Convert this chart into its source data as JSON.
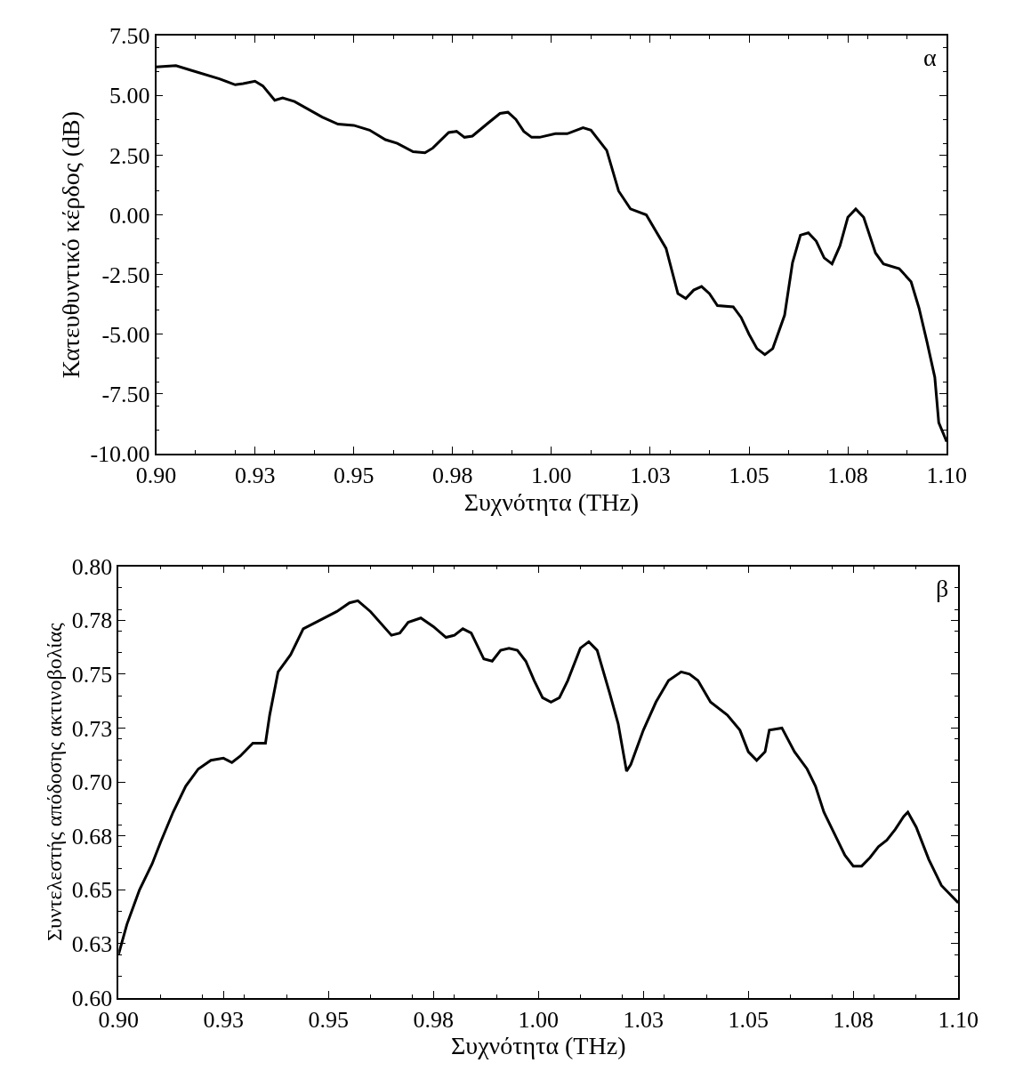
{
  "chart_data": [
    {
      "type": "line",
      "xlabel": "Συχνότητα (THz)",
      "ylabel": "Κατευθυντικό κέρδος (dB)",
      "annotations": [
        "α"
      ],
      "marker": "none",
      "line_style": "solid",
      "xlim": [
        0.9,
        1.1
      ],
      "xticks": [
        {
          "value": 0.9,
          "label": "0.90"
        },
        {
          "value": 0.925,
          "label": "0.93"
        },
        {
          "value": 0.95,
          "label": "0.95"
        },
        {
          "value": 0.975,
          "label": "0.98"
        },
        {
          "value": 1.0,
          "label": "1.00"
        },
        {
          "value": 1.025,
          "label": "1.03"
        },
        {
          "value": 1.05,
          "label": "1.05"
        },
        {
          "value": 1.075,
          "label": "1.08"
        },
        {
          "value": 1.1,
          "label": "1.10"
        }
      ],
      "ylim": [
        -10,
        7.5
      ],
      "yticks": [
        {
          "value": -10,
          "label": "-10.00"
        },
        {
          "value": -7.5,
          "label": "-7.50"
        },
        {
          "value": -5,
          "label": "-5.00"
        },
        {
          "value": -2.5,
          "label": "-2.50"
        },
        {
          "value": 0,
          "label": "0.00"
        },
        {
          "value": 2.5,
          "label": "2.50"
        },
        {
          "value": 5,
          "label": "5.00"
        },
        {
          "value": 7.5,
          "label": "7.50"
        }
      ],
      "x": [
        0.9,
        0.905,
        0.909,
        0.916,
        0.92,
        0.922,
        0.925,
        0.927,
        0.93,
        0.932,
        0.935,
        0.942,
        0.946,
        0.95,
        0.954,
        0.958,
        0.961,
        0.965,
        0.968,
        0.97,
        0.974,
        0.976,
        0.978,
        0.98,
        0.984,
        0.987,
        0.989,
        0.991,
        0.993,
        0.995,
        0.997,
        1.001,
        1.004,
        1.008,
        1.01,
        1.014,
        1.017,
        1.02,
        1.024,
        1.029,
        1.032,
        1.034,
        1.036,
        1.038,
        1.04,
        1.042,
        1.046,
        1.048,
        1.05,
        1.052,
        1.054,
        1.056,
        1.059,
        1.061,
        1.063,
        1.065,
        1.067,
        1.069,
        1.071,
        1.073,
        1.075,
        1.077,
        1.079,
        1.082,
        1.084,
        1.088,
        1.091,
        1.093,
        1.095,
        1.097,
        1.098,
        1.1
      ],
      "series": [
        {
          "color": "#000000",
          "values": [
            6.2,
            6.25,
            6.05,
            5.7,
            5.45,
            5.5,
            5.6,
            5.4,
            4.8,
            4.9,
            4.75,
            4.1,
            3.8,
            3.75,
            3.55,
            3.15,
            3.0,
            2.65,
            2.6,
            2.8,
            3.45,
            3.5,
            3.25,
            3.3,
            3.85,
            4.25,
            4.3,
            4.0,
            3.5,
            3.25,
            3.25,
            3.4,
            3.4,
            3.65,
            3.55,
            2.7,
            1.0,
            0.25,
            0.0,
            -1.4,
            -3.3,
            -3.5,
            -3.15,
            -3.0,
            -3.3,
            -3.8,
            -3.85,
            -4.3,
            -5.0,
            -5.6,
            -5.85,
            -5.6,
            -4.2,
            -2.0,
            -0.85,
            -0.75,
            -1.1,
            -1.8,
            -2.05,
            -1.3,
            -0.1,
            0.25,
            -0.1,
            -1.6,
            -2.05,
            -2.25,
            -2.8,
            -3.9,
            -5.3,
            -6.8,
            -8.7,
            -9.5
          ]
        }
      ]
    },
    {
      "type": "line",
      "xlabel": "Συχνότητα (THz)",
      "ylabel": "Συντελεστής απόδοσης ακτινοβολίας",
      "annotations": [
        "β"
      ],
      "marker": "none",
      "line_style": "solid",
      "xlim": [
        0.9,
        1.1
      ],
      "xticks": [
        {
          "value": 0.9,
          "label": "0.90"
        },
        {
          "value": 0.925,
          "label": "0.93"
        },
        {
          "value": 0.95,
          "label": "0.95"
        },
        {
          "value": 0.975,
          "label": "0.98"
        },
        {
          "value": 1.0,
          "label": "1.00"
        },
        {
          "value": 1.025,
          "label": "1.03"
        },
        {
          "value": 1.05,
          "label": "1.05"
        },
        {
          "value": 1.075,
          "label": "1.08"
        },
        {
          "value": 1.1,
          "label": "1.10"
        }
      ],
      "ylim": [
        0.6,
        0.8
      ],
      "yticks": [
        {
          "value": 0.6,
          "label": "0.60"
        },
        {
          "value": 0.625,
          "label": "0.63"
        },
        {
          "value": 0.65,
          "label": "0.65"
        },
        {
          "value": 0.675,
          "label": "0.68"
        },
        {
          "value": 0.7,
          "label": "0.70"
        },
        {
          "value": 0.725,
          "label": "0.73"
        },
        {
          "value": 0.75,
          "label": "0.75"
        },
        {
          "value": 0.775,
          "label": "0.78"
        },
        {
          "value": 0.8,
          "label": "0.80"
        }
      ],
      "x": [
        0.9,
        0.902,
        0.905,
        0.908,
        0.91,
        0.913,
        0.916,
        0.919,
        0.922,
        0.925,
        0.927,
        0.929,
        0.932,
        0.935,
        0.936,
        0.938,
        0.941,
        0.944,
        0.947,
        0.952,
        0.955,
        0.957,
        0.96,
        0.965,
        0.967,
        0.969,
        0.972,
        0.975,
        0.978,
        0.98,
        0.982,
        0.984,
        0.987,
        0.989,
        0.991,
        0.993,
        0.995,
        0.997,
        0.999,
        1.001,
        1.003,
        1.005,
        1.007,
        1.01,
        1.012,
        1.014,
        1.017,
        1.019,
        1.021,
        1.022,
        1.025,
        1.028,
        1.031,
        1.034,
        1.036,
        1.038,
        1.041,
        1.045,
        1.048,
        1.05,
        1.052,
        1.054,
        1.055,
        1.058,
        1.061,
        1.064,
        1.066,
        1.068,
        1.07,
        1.073,
        1.075,
        1.077,
        1.079,
        1.081,
        1.083,
        1.085,
        1.087,
        1.088,
        1.09,
        1.093,
        1.096,
        1.1
      ],
      "series": [
        {
          "color": "#000000",
          "values": [
            0.62,
            0.634,
            0.65,
            0.662,
            0.672,
            0.686,
            0.698,
            0.706,
            0.71,
            0.711,
            0.709,
            0.712,
            0.718,
            0.718,
            0.731,
            0.751,
            0.759,
            0.771,
            0.774,
            0.779,
            0.783,
            0.784,
            0.779,
            0.768,
            0.769,
            0.774,
            0.776,
            0.772,
            0.767,
            0.768,
            0.771,
            0.769,
            0.757,
            0.756,
            0.761,
            0.762,
            0.761,
            0.756,
            0.747,
            0.739,
            0.737,
            0.739,
            0.747,
            0.762,
            0.765,
            0.761,
            0.741,
            0.727,
            0.705,
            0.708,
            0.724,
            0.737,
            0.747,
            0.751,
            0.75,
            0.747,
            0.737,
            0.731,
            0.724,
            0.714,
            0.71,
            0.714,
            0.724,
            0.725,
            0.714,
            0.706,
            0.698,
            0.686,
            0.678,
            0.666,
            0.661,
            0.661,
            0.665,
            0.67,
            0.673,
            0.678,
            0.684,
            0.686,
            0.679,
            0.664,
            0.652,
            0.644
          ]
        }
      ]
    }
  ]
}
